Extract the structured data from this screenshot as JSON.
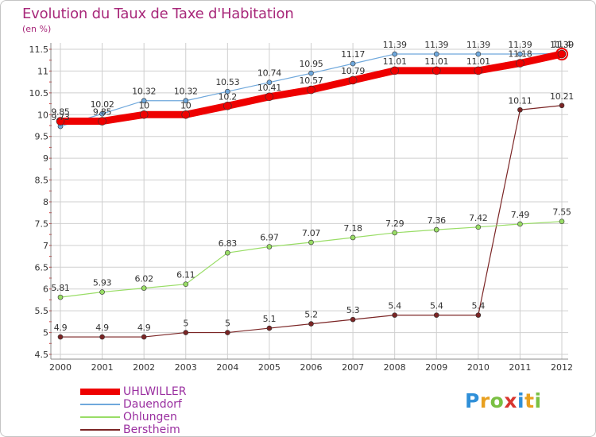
{
  "header": {
    "title": "Evolution du Taux de Taxe d'Habitation",
    "unit": "(en %)"
  },
  "logo": {
    "letters": [
      "P",
      "r",
      "o",
      "x",
      "i",
      "t",
      "i"
    ],
    "colors": [
      "#2f8fd8",
      "#e8a020",
      "#7ac043",
      "#d8362f",
      "#2f8fd8",
      "#e8a020",
      "#7ac043"
    ]
  },
  "chart_data": {
    "type": "line",
    "x": [
      "2000",
      "2001",
      "2002",
      "2003",
      "2004",
      "2005",
      "2006",
      "2007",
      "2008",
      "2009",
      "2010",
      "2011",
      "2012"
    ],
    "ylim": [
      4.5,
      11.5
    ],
    "yticks": [
      4.5,
      5,
      5.5,
      6,
      6.5,
      7,
      7.5,
      8,
      8.5,
      9,
      9.5,
      10,
      10.5,
      11,
      11.5
    ],
    "ytick_labels": [
      "4.5",
      "5",
      "5.5",
      "6",
      "6.5",
      "7",
      "7.5",
      "8",
      "8.5",
      "9",
      "9.5",
      "10",
      "10.5",
      "11",
      "11.5"
    ],
    "grid": true,
    "legend_position": "bottom-left",
    "series": [
      {
        "name": "UHLWILLER",
        "color": "#ee0000",
        "values": [
          9.85,
          9.85,
          10,
          10,
          10.2,
          10.41,
          10.57,
          10.79,
          11.01,
          11.01,
          11.01,
          11.18,
          11.39
        ],
        "labels": [
          "9.85",
          "9.85",
          "10",
          "10",
          "10.2",
          "10.41",
          "10.57",
          "10.79",
          "11.01",
          "11.01",
          "11.01",
          "11.18",
          "11.39"
        ]
      },
      {
        "name": "Dauendorf",
        "color": "#6fa8dc",
        "values": [
          9.73,
          10.02,
          10.32,
          10.32,
          10.53,
          10.74,
          10.95,
          11.17,
          11.39,
          11.39,
          11.39,
          11.39,
          11.4
        ],
        "labels": [
          "9.73",
          "10.02",
          "10.32",
          "10.32",
          "10.53",
          "10.74",
          "10.95",
          "11.17",
          "11.39",
          "11.39",
          "11.39",
          "11.39",
          "11.4"
        ]
      },
      {
        "name": "Ohlungen",
        "color": "#99dd66",
        "values": [
          5.81,
          5.93,
          6.02,
          6.11,
          6.83,
          6.97,
          7.07,
          7.18,
          7.29,
          7.36,
          7.42,
          7.49,
          7.55
        ],
        "labels": [
          "5.81",
          "5.93",
          "6.02",
          "6.11",
          "6.83",
          "6.97",
          "7.07",
          "7.18",
          "7.29",
          "7.36",
          "7.42",
          "7.49",
          "7.55"
        ]
      },
      {
        "name": "Berstheim",
        "color": "#7b2525",
        "values": [
          4.9,
          4.9,
          4.9,
          5,
          5,
          5.1,
          5.2,
          5.3,
          5.4,
          5.4,
          5.4,
          10.11,
          10.21
        ],
        "labels": [
          "4.9",
          "4.9",
          "4.9",
          "5",
          "5",
          "5.1",
          "5.2",
          "5.3",
          "5.4",
          "5.4",
          "5.4",
          "10.11",
          "10.21"
        ]
      }
    ]
  }
}
